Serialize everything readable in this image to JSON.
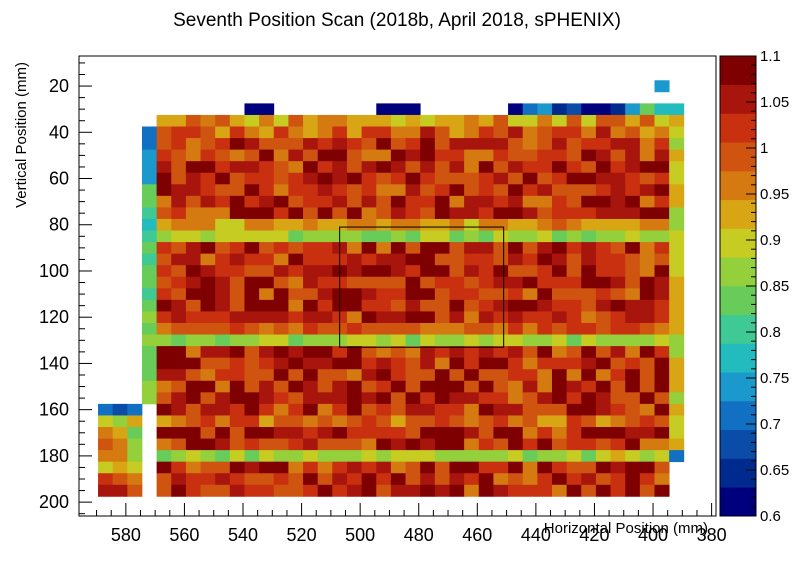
{
  "chart_data": {
    "type": "heatmap",
    "title": "Seventh Position Scan (2018b, April 2018, sPHENIX)",
    "xlabel": "Horizontal Position (mm)",
    "ylabel": "Vertical Position (mm)",
    "x_ticks": [
      "580",
      "560",
      "540",
      "520",
      "500",
      "480",
      "460",
      "440",
      "420",
      "400",
      "380"
    ],
    "y_ticks": [
      "20",
      "40",
      "60",
      "80",
      "100",
      "120",
      "140",
      "160",
      "180",
      "200"
    ],
    "z_ticks": [
      "0.6",
      "0.65",
      "0.7",
      "0.75",
      "0.8",
      "0.85",
      "0.9",
      "0.95",
      "1",
      "1.05",
      "1.1"
    ],
    "xlim": [
      378.5,
      596
    ],
    "ylim": [
      206,
      7
    ],
    "zlim": [
      0.6,
      1.1
    ],
    "x_reversed": true,
    "y_reversed": true,
    "colormap": [
      "#00007f",
      "#002a8e",
      "#0a4ca8",
      "#1270c2",
      "#1b98cc",
      "#22bcbf",
      "#3fca95",
      "#67cc59",
      "#94d03b",
      "#c6cc22",
      "#d8a514",
      "#d47a11",
      "#cf5410",
      "#c9300f",
      "#a8150c",
      "#7f0000"
    ],
    "cell_size_mm": [
      5,
      5
    ],
    "grid_x_centers": [
      592,
      587,
      582,
      577,
      572,
      567,
      562,
      557,
      552,
      547,
      542,
      537,
      532,
      527,
      522,
      517,
      512,
      507,
      502,
      497,
      492,
      487,
      482,
      477,
      472,
      467,
      462,
      457,
      452,
      447,
      442,
      437,
      432,
      427,
      422,
      417,
      412,
      407,
      402,
      397,
      392,
      387,
      382
    ],
    "grid_y_centers": [
      20,
      25,
      30,
      35,
      40,
      45,
      50,
      55,
      60,
      65,
      70,
      75,
      80,
      85,
      90,
      95,
      100,
      105,
      110,
      115,
      120,
      125,
      130,
      135,
      140,
      145,
      150,
      155,
      160,
      165,
      170,
      175,
      180,
      185,
      190,
      195
    ],
    "cells": [
      [
        397,
        20,
        0.73
      ],
      [
        537,
        30,
        0.6
      ],
      [
        532,
        30,
        0.6
      ],
      [
        492,
        30,
        0.62
      ],
      [
        487,
        30,
        0.6
      ],
      [
        482,
        30,
        0.62
      ],
      [
        447,
        30,
        0.62
      ],
      [
        442,
        30,
        0.71
      ],
      [
        437,
        30,
        0.74
      ],
      [
        432,
        30,
        0.66
      ],
      [
        427,
        30,
        0.68
      ],
      [
        422,
        30,
        0.6
      ],
      [
        417,
        30,
        0.6
      ],
      [
        412,
        30,
        0.65
      ],
      [
        407,
        30,
        0.74
      ],
      [
        402,
        30,
        0.82
      ],
      [
        397,
        30,
        0.77
      ],
      [
        392,
        30,
        0.76
      ],
      [
        587,
        160,
        0.7
      ],
      [
        582,
        160,
        0.67
      ],
      [
        577,
        160,
        0.7
      ],
      [
        587,
        165,
        0.9
      ],
      [
        582,
        165,
        0.88
      ],
      [
        577,
        165,
        0.92
      ],
      [
        587,
        170,
        0.97
      ],
      [
        582,
        170,
        0.92
      ],
      [
        577,
        170,
        0.85
      ],
      [
        587,
        175,
        0.99
      ],
      [
        582,
        175,
        0.95
      ],
      [
        577,
        175,
        0.87
      ],
      [
        587,
        180,
        0.95
      ],
      [
        582,
        180,
        0.97
      ],
      [
        577,
        180,
        0.88
      ],
      [
        587,
        185,
        0.9
      ],
      [
        582,
        185,
        0.94
      ],
      [
        577,
        185,
        0.91
      ],
      [
        587,
        190,
        1.02
      ],
      [
        582,
        190,
        0.98
      ],
      [
        577,
        190,
        0.96
      ],
      [
        587,
        195,
        1.06
      ],
      [
        582,
        195,
        1.05
      ],
      [
        577,
        195,
        1.0
      ]
    ],
    "overlay_box": {
      "x": [
        451,
        507
      ],
      "y": [
        81,
        133
      ]
    },
    "grid": false
  }
}
